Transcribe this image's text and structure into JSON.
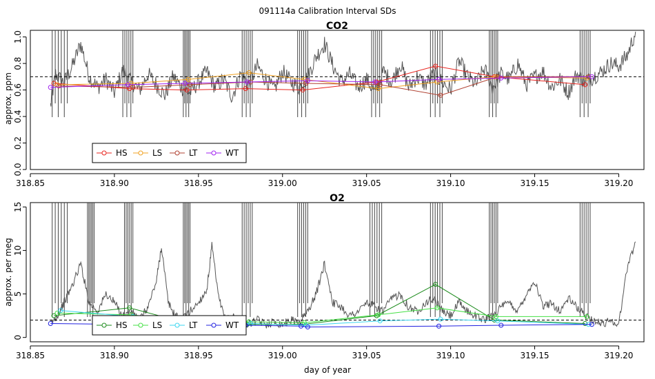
{
  "figure_title": "091114a   Calibration Interval SDs",
  "chart_data": [
    {
      "type": "line",
      "id": "co2",
      "title": "CO2",
      "xlabel": "",
      "ylabel": "approx. ppm",
      "xlim": [
        318.85,
        319.215
      ],
      "ylim": [
        0,
        1.05
      ],
      "xticks": [
        318.85,
        318.9,
        318.95,
        319.0,
        319.05,
        319.1,
        319.15,
        319.2
      ],
      "xtick_labels": [
        "318.85",
        "318.90",
        "318.95",
        "319.00",
        "319.05",
        "319.10",
        "319.15",
        "319.20"
      ],
      "yticks": [
        0,
        0.2,
        0.4,
        0.6,
        0.8,
        1.0
      ],
      "ytick_labels": [
        "0.0",
        "0.2",
        "0.4",
        "0.6",
        "0.8",
        "1.0"
      ],
      "reference_line": 0.7,
      "background_trace": {
        "name": "data",
        "color": "#555555",
        "x": [
          318.862,
          318.865,
          318.87,
          318.875,
          318.88,
          318.885,
          318.89,
          318.895,
          318.9,
          318.905,
          318.91,
          318.915,
          318.92,
          318.925,
          318.93,
          318.935,
          318.94,
          318.945,
          318.95,
          318.955,
          318.96,
          318.965,
          318.97,
          318.975,
          318.98,
          318.985,
          318.99,
          318.995,
          319.0,
          319.005,
          319.01,
          319.015,
          319.02,
          319.025,
          319.03,
          319.035,
          319.04,
          319.045,
          319.05,
          319.055,
          319.06,
          319.065,
          319.07,
          319.075,
          319.08,
          319.085,
          319.09,
          319.095,
          319.1,
          319.105,
          319.11,
          319.115,
          319.12,
          319.125,
          319.13,
          319.135,
          319.14,
          319.145,
          319.15,
          319.155,
          319.16,
          319.165,
          319.17,
          319.175,
          319.18,
          319.185,
          319.19,
          319.195,
          319.2,
          319.205,
          319.21
        ],
        "y": [
          0.48,
          0.72,
          0.65,
          0.78,
          0.95,
          0.7,
          0.62,
          0.68,
          0.58,
          0.75,
          0.66,
          0.6,
          0.72,
          0.64,
          0.56,
          0.7,
          0.62,
          0.58,
          0.66,
          0.74,
          0.62,
          0.68,
          0.55,
          0.72,
          0.64,
          0.78,
          0.68,
          0.6,
          0.74,
          0.66,
          0.62,
          0.7,
          0.85,
          0.95,
          0.78,
          0.66,
          0.72,
          0.62,
          0.68,
          0.58,
          0.74,
          0.66,
          0.8,
          0.62,
          0.7,
          0.64,
          0.72,
          0.66,
          0.6,
          0.82,
          0.7,
          0.64,
          0.76,
          0.62,
          0.72,
          0.68,
          0.8,
          0.64,
          0.7,
          0.74,
          0.62,
          0.68,
          0.58,
          0.72,
          0.66,
          0.7,
          0.74,
          0.8,
          0.78,
          0.86,
          1.04
        ]
      },
      "spike_groups": [
        {
          "from": 318.863,
          "to": 318.872
        },
        {
          "from": 318.905,
          "to": 318.911
        },
        {
          "from": 318.941,
          "to": 318.945
        },
        {
          "from": 318.976,
          "to": 318.982
        },
        {
          "from": 319.009,
          "to": 319.015
        },
        {
          "from": 319.053,
          "to": 319.059
        },
        {
          "from": 319.088,
          "to": 319.095
        },
        {
          "from": 319.123,
          "to": 319.128
        },
        {
          "from": 319.177,
          "to": 319.183
        }
      ],
      "series": [
        {
          "name": "HS",
          "color": "#e8231d",
          "x": [
            318.864,
            318.909,
            318.943,
            318.978,
            319.012,
            319.056,
            319.091,
            319.126,
            319.18
          ],
          "y": [
            0.65,
            0.61,
            0.6,
            0.61,
            0.6,
            0.66,
            0.78,
            0.7,
            0.64
          ]
        },
        {
          "name": "LS",
          "color": "#f0a020",
          "x": [
            318.866,
            318.91,
            318.944,
            318.98,
            319.013,
            319.057,
            319.092,
            319.127,
            319.181
          ],
          "y": [
            0.64,
            0.65,
            0.68,
            0.73,
            0.68,
            0.61,
            0.66,
            0.7,
            0.69
          ]
        },
        {
          "name": "LT",
          "color": "#b04030",
          "x": [
            318.867,
            318.911,
            318.945,
            318.981,
            319.014,
            319.058,
            319.094,
            319.128,
            319.182
          ],
          "y": [
            0.63,
            0.62,
            0.64,
            0.66,
            0.65,
            0.64,
            0.56,
            0.7,
            0.7
          ]
        },
        {
          "name": "WT",
          "color": "#a020f0",
          "x": [
            318.862,
            318.908,
            318.942,
            318.979,
            319.015,
            319.055,
            319.093,
            319.13,
            319.184
          ],
          "y": [
            0.62,
            0.64,
            0.65,
            0.66,
            0.67,
            0.66,
            0.68,
            0.69,
            0.7
          ]
        }
      ],
      "legend": [
        "HS",
        "LS",
        "LT",
        "WT"
      ]
    },
    {
      "type": "line",
      "id": "o2",
      "title": "O2",
      "xlabel": "day of year",
      "ylabel": "approx. per meg",
      "xlim": [
        318.85,
        319.215
      ],
      "ylim": [
        -0.5,
        15.5
      ],
      "xticks": [
        318.85,
        318.9,
        318.95,
        319.0,
        319.05,
        319.1,
        319.15,
        319.2
      ],
      "xtick_labels": [
        "318.85",
        "318.90",
        "318.95",
        "319.00",
        "319.05",
        "319.10",
        "319.15",
        "319.20"
      ],
      "yticks": [
        0,
        5,
        10,
        15
      ],
      "ytick_labels": [
        "0",
        "5",
        "10",
        "15"
      ],
      "reference_line": 2,
      "background_trace": {
        "name": "data",
        "color": "#555555",
        "x": [
          318.862,
          318.866,
          318.87,
          318.875,
          318.88,
          318.885,
          318.89,
          318.895,
          318.9,
          318.905,
          318.91,
          318.915,
          318.92,
          318.925,
          318.928,
          318.932,
          318.936,
          318.94,
          318.945,
          318.95,
          318.955,
          318.958,
          318.962,
          318.966,
          318.97,
          318.975,
          318.98,
          318.985,
          318.99,
          318.995,
          319.0,
          319.005,
          319.01,
          319.015,
          319.02,
          319.025,
          319.03,
          319.035,
          319.04,
          319.045,
          319.05,
          319.055,
          319.06,
          319.065,
          319.07,
          319.075,
          319.08,
          319.085,
          319.09,
          319.095,
          319.1,
          319.105,
          319.11,
          319.115,
          319.12,
          319.125,
          319.13,
          319.135,
          319.14,
          319.145,
          319.15,
          319.155,
          319.16,
          319.165,
          319.17,
          319.175,
          319.18,
          319.185,
          319.19,
          319.195,
          319.2,
          319.205,
          319.21
        ],
        "y": [
          1.5,
          2.5,
          4.0,
          6.0,
          8.5,
          4.0,
          3.0,
          5.0,
          4.0,
          2.5,
          3.0,
          2.0,
          3.5,
          6.5,
          10.5,
          4.0,
          2.5,
          2.0,
          3.0,
          4.0,
          5.5,
          10.5,
          4.5,
          2.0,
          2.5,
          2.0,
          1.5,
          2.0,
          1.5,
          1.8,
          1.5,
          2.0,
          1.8,
          3.0,
          5.0,
          8.5,
          4.0,
          3.5,
          2.5,
          3.0,
          4.0,
          3.5,
          3.0,
          4.5,
          5.0,
          3.5,
          3.0,
          4.0,
          4.5,
          3.0,
          2.5,
          4.0,
          3.0,
          2.5,
          2.0,
          2.5,
          3.5,
          4.0,
          3.0,
          5.0,
          6.5,
          3.5,
          4.0,
          3.0,
          4.5,
          3.5,
          2.5,
          2.0,
          1.5,
          2.0,
          1.5,
          8.0,
          11.0
        ]
      },
      "spike_groups": [
        {
          "from": 318.863,
          "to": 318.872
        },
        {
          "from": 318.884,
          "to": 318.888
        },
        {
          "from": 318.906,
          "to": 318.911
        },
        {
          "from": 318.941,
          "to": 318.945
        },
        {
          "from": 318.976,
          "to": 318.982
        },
        {
          "from": 319.009,
          "to": 319.015
        },
        {
          "from": 319.052,
          "to": 319.059
        },
        {
          "from": 319.088,
          "to": 319.095
        },
        {
          "from": 319.123,
          "to": 319.128
        },
        {
          "from": 319.177,
          "to": 319.183
        }
      ],
      "series": [
        {
          "name": "HS",
          "color": "#1a8a1a",
          "x": [
            318.864,
            318.909,
            318.944,
            318.979,
            319.012,
            319.056,
            319.091,
            319.126,
            319.18
          ],
          "y": [
            2.5,
            3.4,
            1.6,
            1.5,
            1.5,
            2.5,
            6.1,
            2.0,
            1.6
          ]
        },
        {
          "name": "LS",
          "color": "#44e044",
          "x": [
            318.866,
            318.91,
            318.945,
            318.98,
            319.013,
            319.057,
            319.092,
            319.127,
            319.181
          ],
          "y": [
            2.8,
            2.6,
            1.9,
            1.8,
            1.7,
            2.6,
            3.4,
            2.4,
            2.4
          ]
        },
        {
          "name": "LT",
          "color": "#3ad6f0",
          "x": [
            318.868,
            318.911,
            318.946,
            318.981,
            319.014,
            319.058,
            319.094,
            319.128,
            319.182
          ],
          "y": [
            3.1,
            2.4,
            1.7,
            1.6,
            1.4,
            1.9,
            2.1,
            1.9,
            1.5
          ]
        },
        {
          "name": "WT",
          "color": "#2020e0",
          "x": [
            318.862,
            318.908,
            318.943,
            318.978,
            319.011,
            319.015,
            319.093,
            319.13,
            319.184
          ],
          "y": [
            1.6,
            1.5,
            1.4,
            1.4,
            1.3,
            1.2,
            1.3,
            1.4,
            1.5
          ]
        }
      ],
      "legend": [
        "HS",
        "LS",
        "LT",
        "WT"
      ]
    }
  ]
}
